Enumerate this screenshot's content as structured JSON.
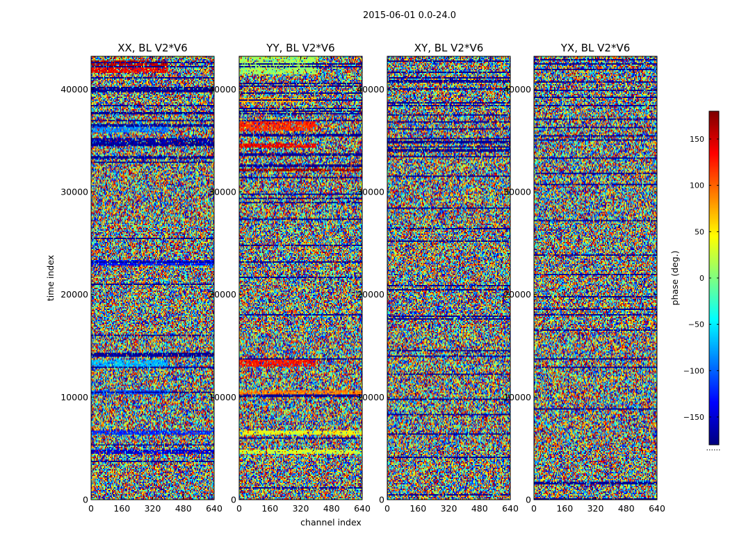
{
  "chart_data": {
    "type": "heatmap",
    "suptitle": "2015-06-01 0.0-24.0",
    "xlabel": "channel index",
    "ylabel": "time index",
    "xlim": [
      0,
      640
    ],
    "ylim": [
      0,
      43200
    ],
    "xticks": [
      0,
      160,
      320,
      480,
      640
    ],
    "yticks": [
      0,
      10000,
      20000,
      30000,
      40000
    ],
    "panels": [
      {
        "title": "XX, BL V2*V6",
        "bands": [
          {
            "t0": 4500,
            "t1": 4900,
            "phase": -150,
            "ch_end": 640
          },
          {
            "t0": 6400,
            "t1": 6800,
            "phase": -120,
            "ch_end": 640
          },
          {
            "t0": 10300,
            "t1": 10700,
            "phase": -110,
            "ch_end": 400
          },
          {
            "t0": 12800,
            "t1": 13600,
            "phase": -70,
            "ch_end": 400
          },
          {
            "t0": 22800,
            "t1": 23300,
            "phase": -130,
            "ch_end": 640
          },
          {
            "t0": 34400,
            "t1": 35300,
            "phase": -170,
            "ch_end": 640
          },
          {
            "t0": 35800,
            "t1": 36600,
            "phase": -90,
            "ch_end": 400
          },
          {
            "t0": 39800,
            "t1": 40200,
            "phase": -180,
            "ch_end": 640
          },
          {
            "t0": 41600,
            "t1": 42100,
            "phase": 140,
            "ch_end": 400
          },
          {
            "t0": 42300,
            "t1": 42800,
            "phase": 160,
            "ch_end": 400
          }
        ]
      },
      {
        "title": "YY, BL V2*V6",
        "bands": [
          {
            "t0": 4400,
            "t1": 4900,
            "phase": 30,
            "ch_end": 640
          },
          {
            "t0": 6300,
            "t1": 6800,
            "phase": 40,
            "ch_end": 640
          },
          {
            "t0": 10200,
            "t1": 10600,
            "phase": 90,
            "ch_end": 640
          },
          {
            "t0": 12900,
            "t1": 13600,
            "phase": 130,
            "ch_end": 400
          },
          {
            "t0": 32000,
            "t1": 32300,
            "phase": 170,
            "ch_end": 640
          },
          {
            "t0": 34300,
            "t1": 34700,
            "phase": 140,
            "ch_end": 400
          },
          {
            "t0": 35900,
            "t1": 36800,
            "phase": 120,
            "ch_end": 400
          },
          {
            "t0": 38700,
            "t1": 39200,
            "phase": 80,
            "ch_end": 400
          },
          {
            "t0": 41500,
            "t1": 43200,
            "phase": 10,
            "ch_end": 400
          }
        ]
      },
      {
        "title": "XY, BL V2*V6",
        "bands": []
      },
      {
        "title": "YX, BL V2*V6",
        "bands": []
      }
    ],
    "colorbar": {
      "label": "phase (deg.)",
      "range": [
        -180,
        180
      ],
      "ticks": [
        150,
        100,
        50,
        0,
        -50,
        -100,
        -150
      ],
      "tick_labels": [
        "150",
        "100",
        "50",
        "0",
        "−50",
        "−100",
        "−150"
      ],
      "cmap": "jet",
      "extra_label": "......"
    }
  }
}
